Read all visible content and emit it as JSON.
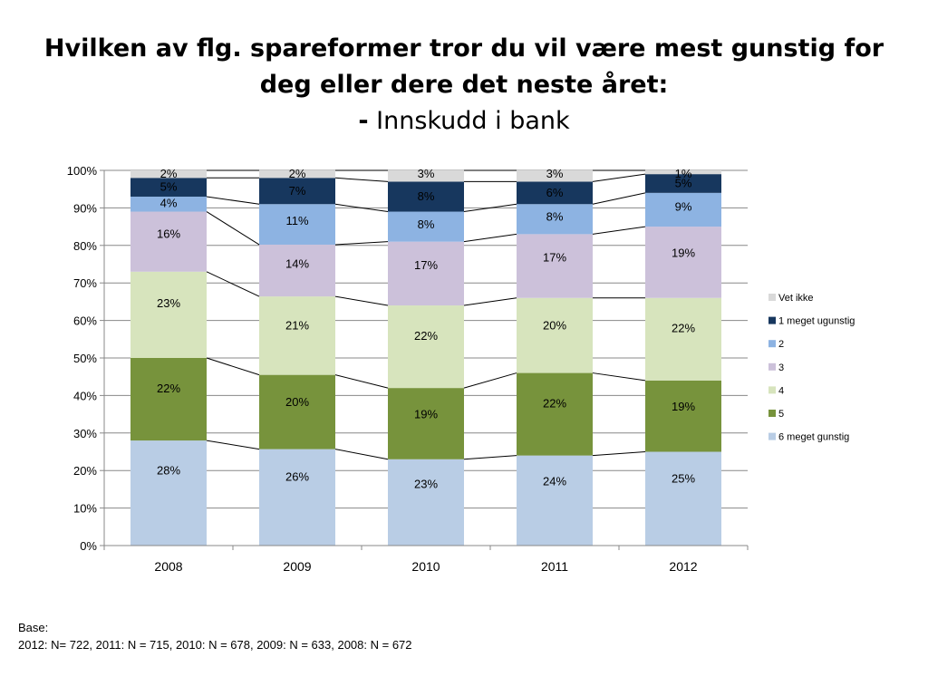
{
  "title": {
    "line1": "Hvilken av flg. spareformer tror du vil være mest gunstig for",
    "line2": "deg eller dere det neste året:",
    "dash": "-",
    "subtitle": "Innskudd i bank"
  },
  "footnote": {
    "label": "Base:",
    "text": "2012: N= 722, 2011: N = 715, 2010: N = 678, 2009: N = 633, 2008: N = 672"
  },
  "chart_data": {
    "type": "bar",
    "stacked": true,
    "title": "Hvilken av flg. spareformer tror du vil være mest gunstig for deg eller dere det neste året: - Innskudd i bank",
    "categories": [
      "2008",
      "2009",
      "2010",
      "2011",
      "2012"
    ],
    "ylim": [
      0,
      100
    ],
    "y_ticks": [
      "0%",
      "10%",
      "20%",
      "30%",
      "40%",
      "50%",
      "60%",
      "70%",
      "80%",
      "90%",
      "100%"
    ],
    "grid": true,
    "legend_position": "right",
    "series": [
      {
        "name": "6 meget gunstig",
        "color": "#b9cde5",
        "values": [
          28,
          26,
          23,
          24,
          25
        ]
      },
      {
        "name": "5",
        "color": "#77933c",
        "values": [
          22,
          20,
          19,
          22,
          19
        ]
      },
      {
        "name": "4",
        "color": "#d7e4bd",
        "values": [
          23,
          21,
          22,
          20,
          22
        ]
      },
      {
        "name": "3",
        "color": "#ccc1da",
        "values": [
          16,
          14,
          17,
          17,
          19
        ]
      },
      {
        "name": "2",
        "color": "#8db3e2",
        "values": [
          4,
          11,
          8,
          8,
          9
        ]
      },
      {
        "name": "1 meget ugunstig",
        "color": "#17375e",
        "values": [
          5,
          7,
          8,
          6,
          5
        ]
      },
      {
        "name": "Vet ikke",
        "color": "#d9d9d9",
        "values": [
          2,
          2,
          3,
          3,
          1
        ]
      }
    ],
    "segment_tops": [
      [
        28,
        50,
        73,
        89,
        93,
        98,
        100
      ],
      [
        25.7,
        45.5,
        66.4,
        80.2,
        91,
        98,
        100
      ],
      [
        23,
        42,
        64,
        81,
        89,
        97,
        100
      ],
      [
        24,
        46,
        66,
        83,
        91,
        97,
        100
      ],
      [
        25,
        44,
        66,
        85,
        94,
        99,
        100
      ]
    ],
    "data_labels": [
      [
        "28%",
        "22%",
        "23%",
        "16%",
        "4%",
        "5%",
        "2%"
      ],
      [
        "26%",
        "20%",
        "21%",
        "14%",
        "11%",
        "7%",
        "2%"
      ],
      [
        "23%",
        "19%",
        "22%",
        "17%",
        "8%",
        "8%",
        "3%"
      ],
      [
        "24%",
        "22%",
        "20%",
        "17%",
        "8%",
        "6%",
        "3%"
      ],
      [
        "25%",
        "19%",
        "22%",
        "19%",
        "9%",
        "5%",
        "1%"
      ]
    ]
  }
}
